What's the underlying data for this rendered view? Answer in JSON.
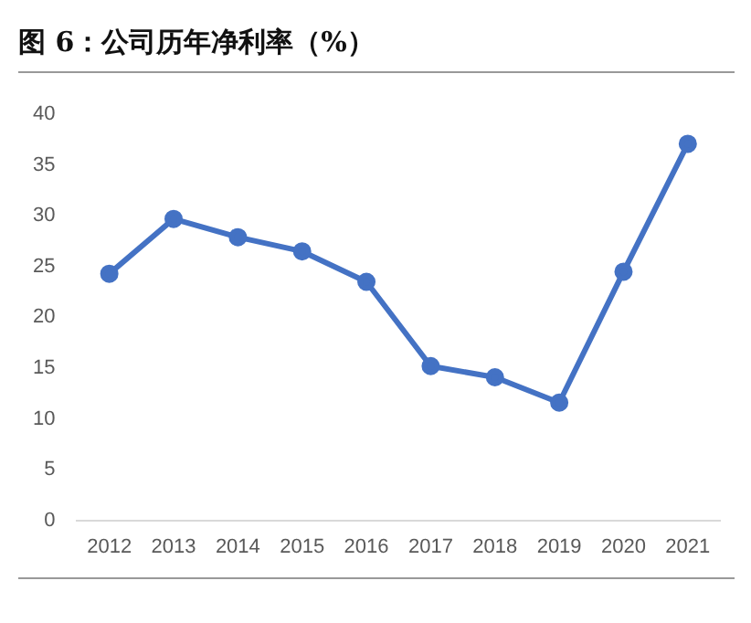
{
  "chart_data": {
    "type": "line",
    "title": "图 6：公司历年净利率（%）",
    "categories": [
      "2012",
      "2013",
      "2014",
      "2015",
      "2016",
      "2017",
      "2018",
      "2019",
      "2020",
      "2021"
    ],
    "values": [
      24.3,
      29.7,
      27.9,
      26.5,
      23.5,
      15.2,
      14.1,
      11.6,
      24.5,
      37.1
    ],
    "color": "#4472c4",
    "marker": "circle",
    "line_style": "solid",
    "ylim": [
      0,
      40
    ],
    "yticks": [
      0,
      5,
      10,
      15,
      20,
      25,
      30,
      35,
      40
    ],
    "grid": false,
    "legend": false
  }
}
